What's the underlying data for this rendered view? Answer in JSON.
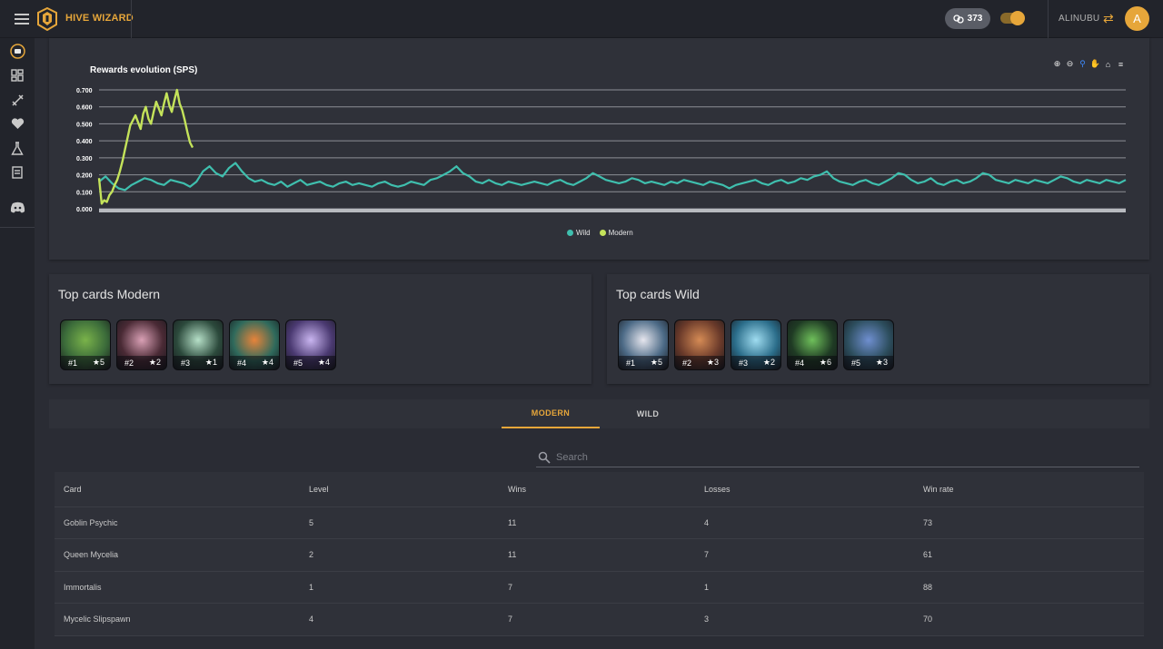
{
  "app": {
    "brand": "HIVE WIZARD",
    "rc_value": "373",
    "toggle_badge": "+",
    "username": "ALINUBU",
    "avatar_letter": "A"
  },
  "sidebar": {
    "items": [
      "hive-wizard-icon",
      "dashboard-icon",
      "swords-icon",
      "heart-icon",
      "flask-icon",
      "archive-icon",
      "discord-icon"
    ]
  },
  "chart": {
    "title": "Rewards evolution (SPS)",
    "tools": [
      "zoom-in-icon",
      "zoom-out-icon",
      "magnifier-icon",
      "pan-hand-icon",
      "home-icon",
      "menu-icon"
    ],
    "legend": [
      "Wild",
      "Modern"
    ]
  },
  "chart_data": {
    "type": "line",
    "title": "Rewards evolution (SPS)",
    "ylim": [
      0,
      0.7
    ],
    "ytick_labels": [
      "0.700",
      "0.600",
      "0.500",
      "0.400",
      "0.300",
      "0.200",
      "0.100",
      "0.000"
    ],
    "grid": true,
    "legend_position": "bottom-center",
    "series": [
      {
        "name": "Wild",
        "color": "#3fbfae",
        "values": [
          0.16,
          0.19,
          0.15,
          0.12,
          0.11,
          0.14,
          0.16,
          0.18,
          0.17,
          0.15,
          0.14,
          0.17,
          0.16,
          0.15,
          0.13,
          0.16,
          0.22,
          0.25,
          0.21,
          0.19,
          0.24,
          0.27,
          0.22,
          0.18,
          0.16,
          0.17,
          0.15,
          0.14,
          0.16,
          0.13,
          0.15,
          0.17,
          0.14,
          0.15,
          0.16,
          0.14,
          0.13,
          0.15,
          0.16,
          0.14,
          0.15,
          0.14,
          0.13,
          0.15,
          0.16,
          0.14,
          0.13,
          0.14,
          0.16,
          0.15,
          0.14,
          0.17,
          0.18,
          0.2,
          0.22,
          0.25,
          0.21,
          0.19,
          0.16,
          0.15,
          0.17,
          0.15,
          0.14,
          0.16,
          0.15,
          0.14,
          0.15,
          0.16,
          0.15,
          0.14,
          0.16,
          0.17,
          0.15,
          0.14,
          0.16,
          0.18,
          0.21,
          0.19,
          0.17,
          0.16,
          0.15,
          0.16,
          0.18,
          0.17,
          0.15,
          0.16,
          0.15,
          0.14,
          0.16,
          0.15,
          0.17,
          0.16,
          0.15,
          0.14,
          0.16,
          0.15,
          0.14,
          0.12,
          0.14,
          0.15,
          0.16,
          0.17,
          0.15,
          0.14,
          0.16,
          0.17,
          0.15,
          0.16,
          0.18,
          0.17,
          0.19,
          0.2,
          0.22,
          0.18,
          0.16,
          0.15,
          0.14,
          0.16,
          0.17,
          0.15,
          0.14,
          0.16,
          0.18,
          0.21,
          0.2,
          0.17,
          0.15,
          0.16,
          0.18,
          0.15,
          0.14,
          0.16,
          0.17,
          0.15,
          0.16,
          0.18,
          0.21,
          0.2,
          0.17,
          0.16,
          0.15,
          0.17,
          0.16,
          0.15,
          0.17,
          0.16,
          0.15,
          0.17,
          0.19,
          0.18,
          0.16,
          0.15,
          0.17,
          0.16,
          0.15,
          0.17,
          0.16,
          0.15,
          0.17
        ]
      },
      {
        "name": "Modern",
        "color": "#c4e35a",
        "values": [
          0.18,
          0.03,
          0.05,
          0.04,
          0.08,
          0.1,
          0.14,
          0.17,
          0.22,
          0.28,
          0.35,
          0.42,
          0.49,
          0.52,
          0.55,
          0.51,
          0.47,
          0.56,
          0.6,
          0.53,
          0.5,
          0.57,
          0.63,
          0.59,
          0.55,
          0.62,
          0.68,
          0.61,
          0.57,
          0.64,
          0.7,
          0.62,
          0.58,
          0.52,
          0.45,
          0.39,
          0.36
        ]
      }
    ]
  },
  "top_modern": {
    "title": "Top cards Modern",
    "cards": [
      {
        "rank": "#1",
        "stars": "★5",
        "bg": "#3b6b3a",
        "accent": "#7ab34a"
      },
      {
        "rank": "#2",
        "stars": "★2",
        "bg": "#4a2a35",
        "accent": "#d9a0b5"
      },
      {
        "rank": "#3",
        "stars": "★1",
        "bg": "#2c4a3c",
        "accent": "#b6e0c8"
      },
      {
        "rank": "#4",
        "stars": "★4",
        "bg": "#2f6a5c",
        "accent": "#e7843a"
      },
      {
        "rank": "#5",
        "stars": "★4",
        "bg": "#4b3a72",
        "accent": "#c9b5f0"
      }
    ]
  },
  "top_wild": {
    "title": "Top cards Wild",
    "cards": [
      {
        "rank": "#1",
        "stars": "★5",
        "bg": "#4c6a86",
        "accent": "#e6e6ee"
      },
      {
        "rank": "#2",
        "stars": "★3",
        "bg": "#6a3a2a",
        "accent": "#d58b55"
      },
      {
        "rank": "#3",
        "stars": "★2",
        "bg": "#2b6d8a",
        "accent": "#9fdcf0"
      },
      {
        "rank": "#4",
        "stars": "★6",
        "bg": "#1f3b24",
        "accent": "#6fc05b"
      },
      {
        "rank": "#5",
        "stars": "★3",
        "bg": "#2d4e5e",
        "accent": "#6f8fd0"
      }
    ]
  },
  "tabs": [
    "MODERN",
    "WILD"
  ],
  "search": {
    "placeholder": "Search"
  },
  "table": {
    "headers": [
      "Card",
      "Level",
      "Wins",
      "Losses",
      "Win rate"
    ],
    "rows": [
      [
        "Goblin Psychic",
        "5",
        "11",
        "4",
        "73"
      ],
      [
        "Queen Mycelia",
        "2",
        "11",
        "7",
        "61"
      ],
      [
        "Immortalis",
        "1",
        "7",
        "1",
        "88"
      ],
      [
        "Mycelic Slipspawn",
        "4",
        "7",
        "3",
        "70"
      ]
    ]
  }
}
